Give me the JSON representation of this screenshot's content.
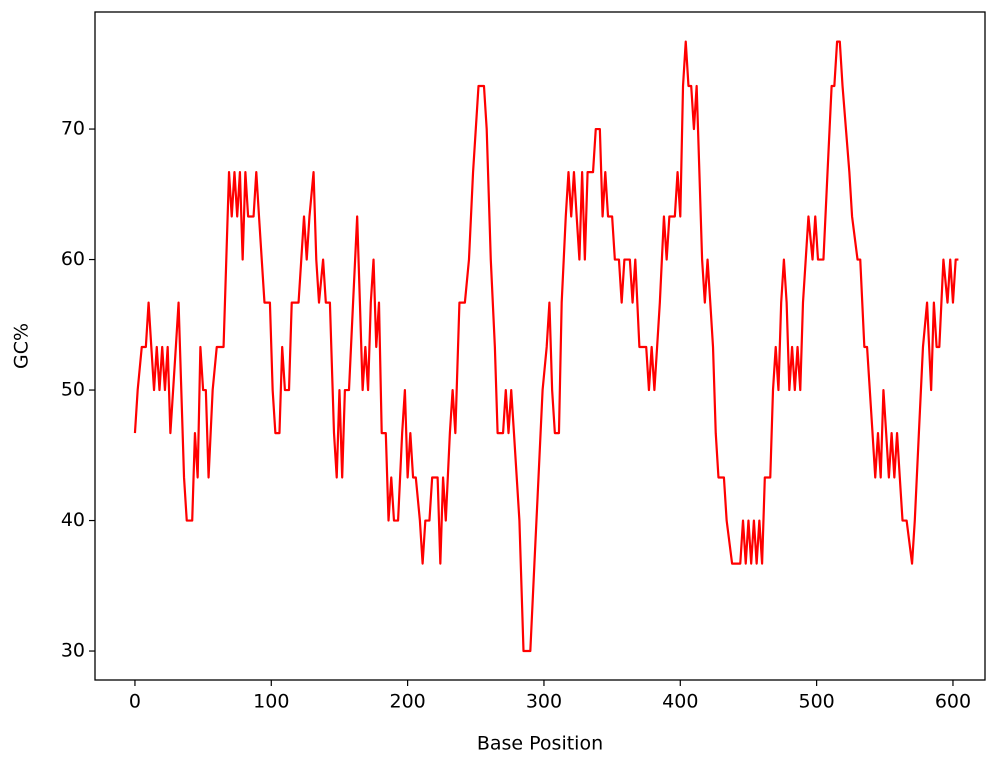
{
  "chart_data": {
    "type": "line",
    "xlabel": "Base Position",
    "ylabel": "GC%",
    "color": "#ff0000",
    "grid": false,
    "xlim": [
      -29.3,
      623.5
    ],
    "ylim": [
      27.78,
      78.97
    ],
    "xticks": [
      0,
      100,
      200,
      300,
      400,
      500,
      600
    ],
    "yticks": [
      30,
      40,
      50,
      60,
      70
    ],
    "x": [
      0,
      2,
      5,
      8,
      10,
      12,
      14,
      16,
      18,
      20,
      22,
      24,
      26,
      28,
      30,
      32,
      34,
      36,
      38,
      42,
      44,
      46,
      48,
      50,
      52,
      54,
      57,
      60,
      65,
      67,
      69,
      71,
      73,
      75,
      77,
      79,
      81,
      83,
      87,
      89,
      91,
      93,
      95,
      99,
      101,
      103,
      106,
      108,
      110,
      113,
      115,
      120,
      122,
      124,
      126,
      128,
      131,
      133,
      135,
      138,
      140,
      143,
      146,
      148,
      150,
      152,
      154,
      157,
      160,
      163,
      165,
      167,
      169,
      171,
      173,
      175,
      177,
      179,
      181,
      184,
      186,
      188,
      190,
      193,
      196,
      198,
      200,
      202,
      204,
      206,
      209,
      211,
      213,
      216,
      218,
      222,
      224,
      226,
      228,
      231,
      233,
      235,
      238,
      242,
      245,
      248,
      252,
      256,
      258,
      261,
      264,
      266,
      270,
      272,
      274,
      276,
      278,
      282,
      285,
      290,
      293,
      296,
      299,
      302,
      304,
      306,
      308,
      311,
      313,
      316,
      318,
      320,
      322,
      324,
      326,
      328,
      330,
      332,
      336,
      338,
      341,
      343,
      345,
      347,
      350,
      352,
      355,
      357,
      359,
      363,
      365,
      367,
      370,
      375,
      377,
      379,
      381,
      383,
      385,
      388,
      390,
      392,
      396,
      398,
      400,
      402,
      404,
      406,
      408,
      410,
      412,
      414,
      416,
      418,
      420,
      422,
      424,
      426,
      428,
      432,
      434,
      438,
      444,
      446,
      448,
      450,
      452,
      454,
      456,
      458,
      460,
      462,
      466,
      468,
      470,
      472,
      474,
      476,
      478,
      480,
      482,
      484,
      486,
      488,
      490,
      492,
      494,
      497,
      499,
      501,
      505,
      508,
      511,
      513,
      515,
      517,
      519,
      524,
      526,
      530,
      532,
      535,
      537,
      539,
      541,
      543,
      545,
      547,
      549,
      551,
      553,
      555,
      557,
      559,
      561,
      563,
      566,
      570,
      572,
      575,
      578,
      581,
      584,
      586,
      588,
      590,
      593,
      596,
      598,
      600,
      602,
      604
    ],
    "values": [
      46.7,
      50,
      53.3,
      53.3,
      56.7,
      53.3,
      50,
      53.3,
      50,
      53.3,
      50,
      53.3,
      46.7,
      50,
      53.3,
      56.7,
      50,
      43.3,
      40,
      40,
      46.7,
      43.3,
      53.3,
      50,
      50,
      43.3,
      50,
      53.3,
      53.3,
      60,
      66.7,
      63.3,
      66.7,
      63.3,
      66.7,
      60,
      66.7,
      63.3,
      63.3,
      66.7,
      63.3,
      60,
      56.7,
      56.7,
      50,
      46.7,
      46.7,
      53.3,
      50,
      50,
      56.7,
      56.7,
      60,
      63.3,
      60,
      63.3,
      66.7,
      60,
      56.7,
      60,
      56.7,
      56.7,
      46.7,
      43.3,
      50,
      43.3,
      50,
      50,
      56.7,
      63.3,
      56.7,
      50,
      53.3,
      50,
      56.7,
      60,
      53.3,
      56.7,
      46.7,
      46.7,
      40,
      43.3,
      40,
      40,
      46.7,
      50,
      43.3,
      46.7,
      43.3,
      43.3,
      40,
      36.7,
      40,
      40,
      43.3,
      43.3,
      36.7,
      43.3,
      40,
      46.7,
      50,
      46.7,
      56.7,
      56.7,
      60,
      66.7,
      73.3,
      73.3,
      70,
      60,
      53.3,
      46.7,
      46.7,
      50,
      46.7,
      50,
      46.7,
      40,
      30,
      30,
      36.7,
      43.3,
      50,
      53.3,
      56.7,
      50,
      46.7,
      46.7,
      56.7,
      63.3,
      66.7,
      63.3,
      66.7,
      63.3,
      60,
      66.7,
      60,
      66.7,
      66.7,
      70,
      70,
      63.3,
      66.7,
      63.3,
      63.3,
      60,
      60,
      56.7,
      60,
      60,
      56.7,
      60,
      53.3,
      53.3,
      50,
      53.3,
      50,
      53.3,
      56.7,
      63.3,
      60,
      63.3,
      63.3,
      66.7,
      63.3,
      73.3,
      76.7,
      73.3,
      73.3,
      70,
      73.3,
      66.7,
      60,
      56.7,
      60,
      56.7,
      53.3,
      46.7,
      43.3,
      43.3,
      40,
      36.7,
      36.7,
      40,
      36.7,
      40,
      36.7,
      40,
      36.7,
      40,
      36.7,
      43.3,
      43.3,
      50,
      53.3,
      50,
      56.7,
      60,
      56.7,
      50,
      53.3,
      50,
      53.3,
      50,
      56.7,
      60,
      63.3,
      60,
      63.3,
      60,
      60,
      66.7,
      73.3,
      73.3,
      76.7,
      76.7,
      73.3,
      66.7,
      63.3,
      60,
      60,
      53.3,
      53.3,
      50,
      46.7,
      43.3,
      46.7,
      43.3,
      50,
      46.7,
      43.3,
      46.7,
      43.3,
      46.7,
      43.3,
      40,
      40,
      36.7,
      40,
      46.7,
      53.3,
      56.7,
      50,
      56.7,
      53.3,
      53.3,
      60,
      56.7,
      60,
      56.7,
      60,
      60
    ]
  }
}
